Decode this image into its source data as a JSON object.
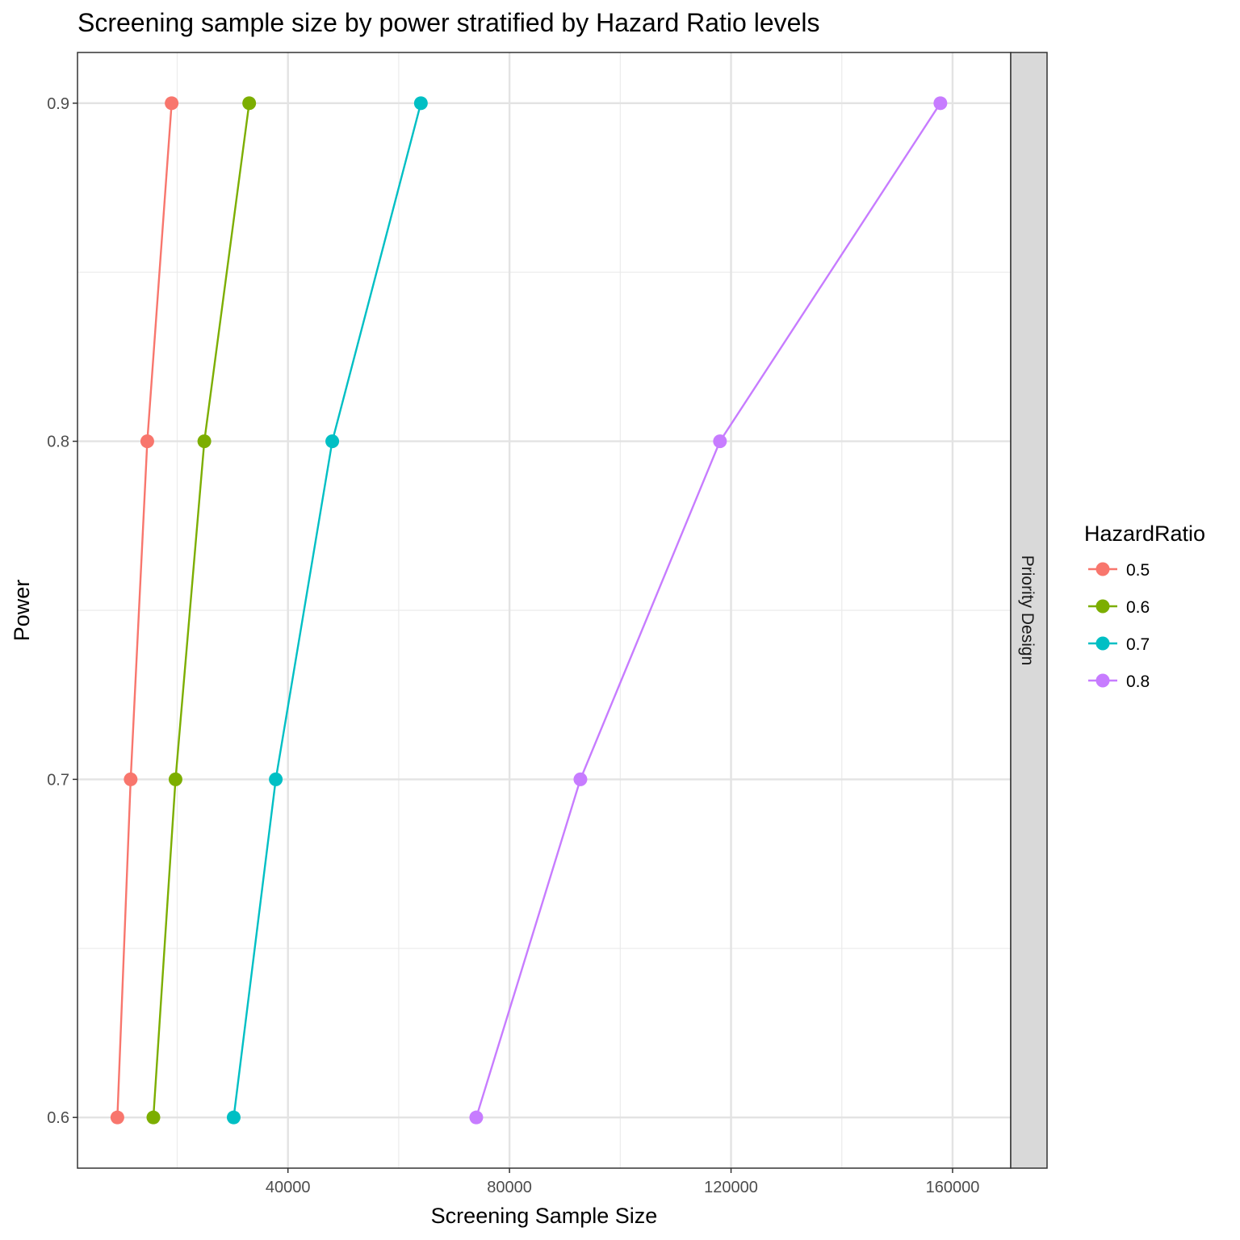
{
  "chart_data": {
    "type": "line",
    "title": "Screening sample size by power stratified by Hazard Ratio levels",
    "xlabel": "Screening Sample Size",
    "ylabel": "Power",
    "facet_label": "Priority Design",
    "xlim": [
      2000,
      170500
    ],
    "ylim": [
      0.585,
      0.915
    ],
    "x_ticks": [
      40000,
      80000,
      120000,
      160000
    ],
    "x_tick_labels": [
      "40000",
      "80000",
      "120000",
      "160000"
    ],
    "y_ticks": [
      0.6,
      0.7,
      0.8,
      0.9
    ],
    "y_tick_labels": [
      "0.6",
      "0.7",
      "0.8",
      "0.9"
    ],
    "grid": true,
    "legend": {
      "title": "HazardRatio",
      "position": "right"
    },
    "series": [
      {
        "name": "0.5",
        "color": "#F8766D",
        "x": [
          9200,
          11600,
          14600,
          19000
        ],
        "y": [
          0.6,
          0.7,
          0.8,
          0.9
        ]
      },
      {
        "name": "0.6",
        "color": "#7CAE00",
        "x": [
          15700,
          19700,
          24900,
          33000
        ],
        "y": [
          0.6,
          0.7,
          0.8,
          0.9
        ]
      },
      {
        "name": "0.7",
        "color": "#00BFC4",
        "x": [
          30200,
          37800,
          48000,
          64000
        ],
        "y": [
          0.6,
          0.7,
          0.8,
          0.9
        ]
      },
      {
        "name": "0.8",
        "color": "#C77CFF",
        "x": [
          74000,
          92800,
          118000,
          157800
        ],
        "y": [
          0.6,
          0.7,
          0.8,
          0.9
        ]
      }
    ]
  }
}
